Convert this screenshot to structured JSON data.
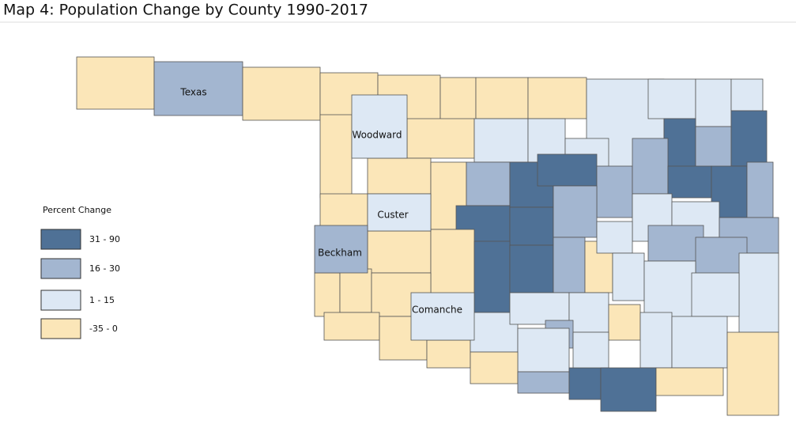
{
  "title": "Map 4: Population Change by County 1990-2017",
  "legend": {
    "title": "Percent Change",
    "items": [
      {
        "label": "31 - 90",
        "color": "#4f7196"
      },
      {
        "label": "16 - 30",
        "color": "#a3b6d0"
      },
      {
        "label": "1 - 15",
        "color": "#dde8f4"
      },
      {
        "label": "-35 - 0",
        "color": "#fbe6b8"
      }
    ]
  },
  "county_labels": [
    "Texas",
    "Woodward",
    "Custer",
    "Beckham",
    "Comanche"
  ]
}
